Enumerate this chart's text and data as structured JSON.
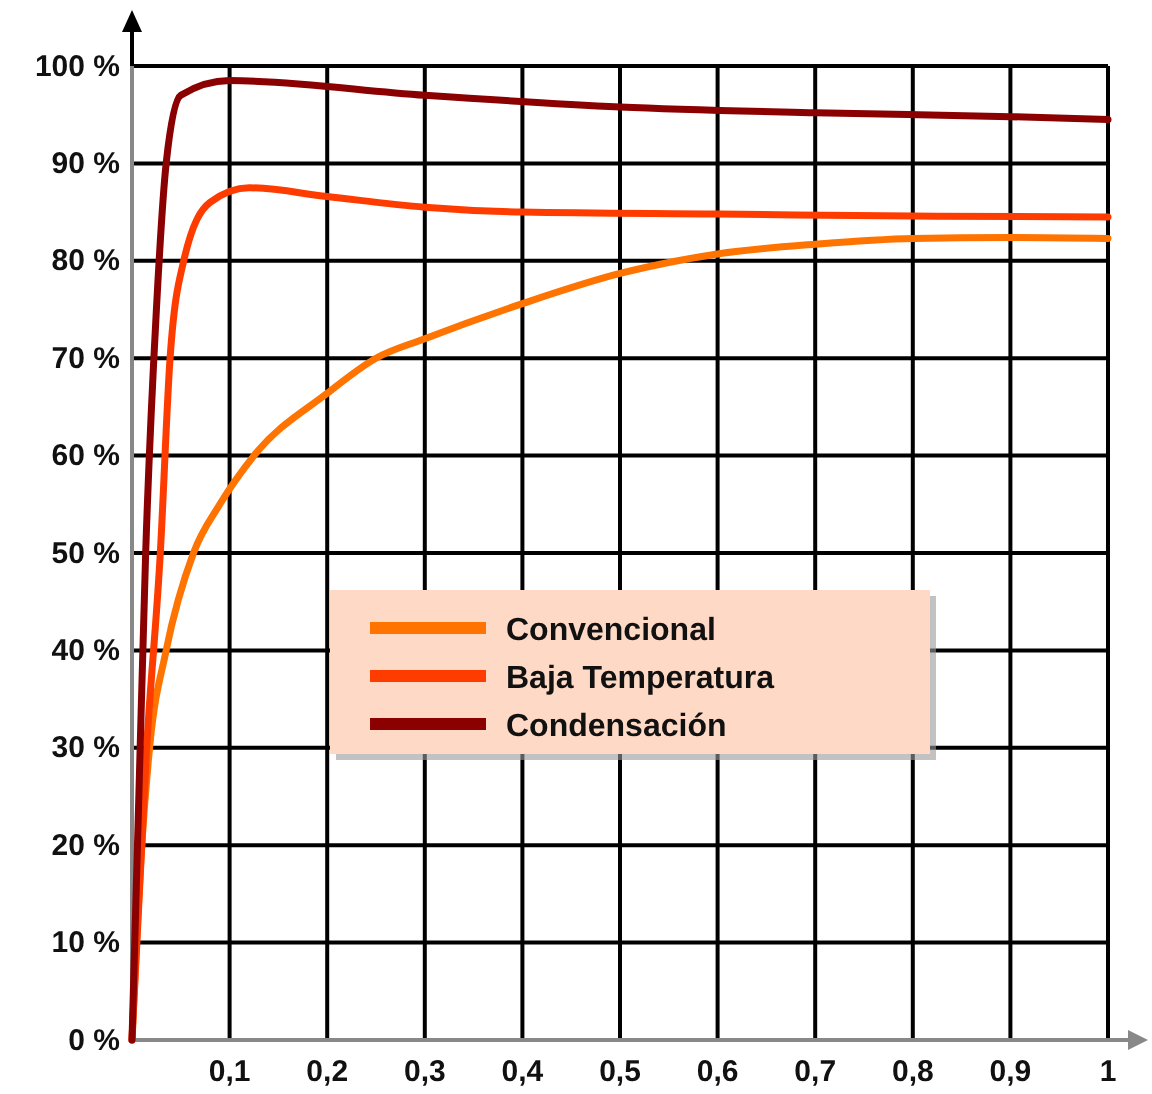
{
  "chart_data": {
    "type": "line",
    "xlim": [
      0,
      1
    ],
    "ylim": [
      0,
      100
    ],
    "xticks": [
      {
        "value": 0.1,
        "label": "0,1"
      },
      {
        "value": 0.2,
        "label": "0,2"
      },
      {
        "value": 0.3,
        "label": "0,3"
      },
      {
        "value": 0.4,
        "label": "0,4"
      },
      {
        "value": 0.5,
        "label": "0,5"
      },
      {
        "value": 0.6,
        "label": "0,6"
      },
      {
        "value": 0.7,
        "label": "0,7"
      },
      {
        "value": 0.8,
        "label": "0,8"
      },
      {
        "value": 0.9,
        "label": "0,9"
      },
      {
        "value": 1,
        "label": "1"
      }
    ],
    "yticks": [
      {
        "value": 0,
        "label": "0 %"
      },
      {
        "value": 10,
        "label": "10 %"
      },
      {
        "value": 20,
        "label": "20 %"
      },
      {
        "value": 30,
        "label": "30 %"
      },
      {
        "value": 40,
        "label": "40 %"
      },
      {
        "value": 50,
        "label": "50 %"
      },
      {
        "value": 60,
        "label": "60 %"
      },
      {
        "value": 70,
        "label": "70 %"
      },
      {
        "value": 80,
        "label": "80 %"
      },
      {
        "value": 90,
        "label": "90 %"
      },
      {
        "value": 100,
        "label": "100 %"
      }
    ],
    "grid": true,
    "legend": "center",
    "marker": "none",
    "line_style": "solid",
    "series": [
      {
        "name": "Convencional",
        "color": "#ff7300",
        "x": [
          0,
          0.01,
          0.018,
          0.035,
          0.063,
          0.09,
          0.125,
          0.2,
          0.25,
          0.3,
          0.4,
          0.5,
          0.6,
          0.7,
          0.8,
          0.9,
          1
        ],
        "values": [
          0,
          20,
          30,
          40,
          50,
          55,
          60,
          66.4,
          70,
          72,
          75.6,
          78.7,
          80.7,
          81.7,
          82.3,
          82.4,
          82.3
        ]
      },
      {
        "name": "Baja Temperatura",
        "color": "#ff3c00",
        "x": [
          0,
          0.015,
          0.029,
          0.039,
          0.053,
          0.08,
          0.12,
          0.2,
          0.3,
          0.4,
          0.6,
          0.8,
          1
        ],
        "values": [
          0,
          30,
          50,
          70,
          80,
          86,
          87.5,
          86.6,
          85.5,
          85,
          84.8,
          84.6,
          84.5
        ]
      },
      {
        "name": "Condensación",
        "color": "#8b0000",
        "x": [
          0,
          0.007,
          0.014,
          0.025,
          0.035,
          0.05,
          0.1,
          0.3,
          0.5,
          0.7,
          0.9,
          1
        ],
        "values": [
          0,
          25,
          50,
          75,
          90,
          97,
          98.5,
          97,
          95.8,
          95.2,
          94.8,
          94.5
        ]
      }
    ]
  }
}
